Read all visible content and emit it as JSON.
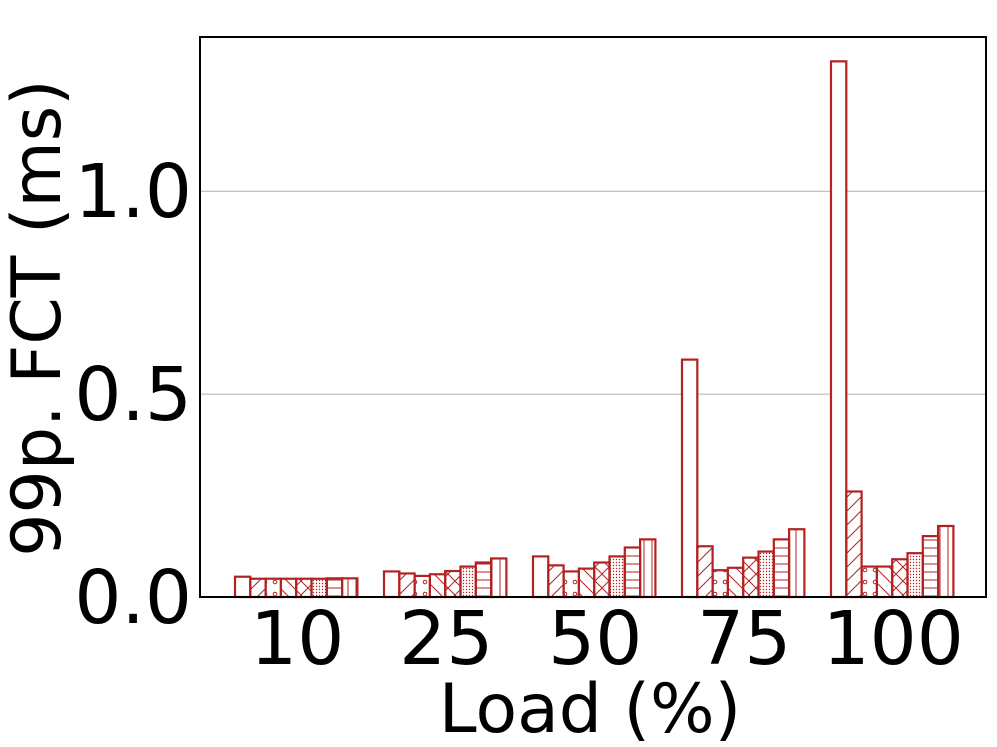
{
  "chart_data": {
    "type": "bar",
    "title": "",
    "xlabel": "Load (%)",
    "ylabel": "99p. FCT (ms)",
    "categories": [
      "10",
      "25",
      "50",
      "75",
      "100"
    ],
    "ylim": [
      0,
      1.38
    ],
    "yticks": [
      "0.0",
      "0.5",
      "1.0"
    ],
    "grid": "horizontal",
    "bar_color": "#b22222",
    "series": [
      {
        "pattern": "none",
        "values": [
          0.05,
          0.063,
          0.1,
          0.585,
          1.32
        ]
      },
      {
        "pattern": "diagonal",
        "values": [
          0.045,
          0.058,
          0.078,
          0.125,
          0.26
        ]
      },
      {
        "pattern": "circles",
        "values": [
          0.045,
          0.052,
          0.063,
          0.066,
          0.075
        ]
      },
      {
        "pattern": "backslash",
        "values": [
          0.045,
          0.056,
          0.07,
          0.072,
          0.075
        ]
      },
      {
        "pattern": "cross",
        "values": [
          0.045,
          0.064,
          0.085,
          0.097,
          0.093
        ]
      },
      {
        "pattern": "dots",
        "values": [
          0.045,
          0.075,
          0.1,
          0.112,
          0.108
        ]
      },
      {
        "pattern": "horizontal",
        "values": [
          0.046,
          0.085,
          0.122,
          0.142,
          0.15
        ]
      },
      {
        "pattern": "vertical",
        "values": [
          0.046,
          0.095,
          0.142,
          0.167,
          0.175
        ]
      }
    ]
  }
}
